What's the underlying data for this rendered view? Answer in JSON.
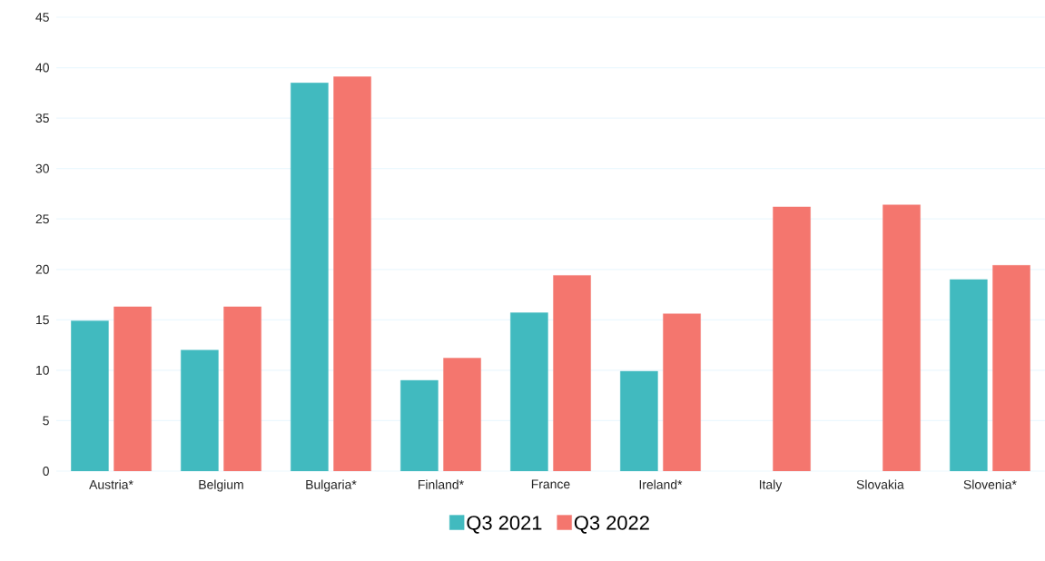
{
  "chart_data": {
    "type": "bar",
    "categories": [
      "Austria*",
      "Belgium",
      "Bulgaria*",
      "Finland*",
      "France",
      "Ireland*",
      "Italy",
      "Slovakia",
      "Slovenia*"
    ],
    "series": [
      {
        "name": "Q3 2021",
        "color": "#41babf",
        "values": [
          14.9,
          12.0,
          38.5,
          9.0,
          15.7,
          9.9,
          null,
          null,
          19.0
        ]
      },
      {
        "name": "Q3 2022",
        "color": "#f4766e",
        "values": [
          16.3,
          16.3,
          39.1,
          11.2,
          19.4,
          15.6,
          26.2,
          26.4,
          20.4
        ]
      }
    ],
    "ylim": [
      0,
      45
    ],
    "yticks": [
      0,
      5,
      10,
      15,
      20,
      25,
      30,
      35,
      40,
      45
    ],
    "grid": "y",
    "legend": "bottom"
  }
}
